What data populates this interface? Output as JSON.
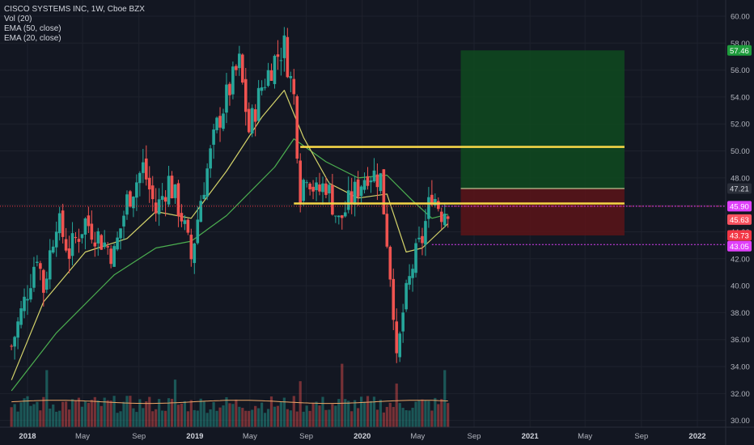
{
  "legend": {
    "symbol": "CISCO SYSTEMS INC, 1W, Cboe BZX",
    "vol": "Vol (20)",
    "ema50": "EMA (50, close)",
    "ema20": "EMA (20, close)"
  },
  "colors": {
    "background": "#131722",
    "up": "#26a69a",
    "down": "#ef5350",
    "ema20": "#d4d36a",
    "ema50": "#4caf50",
    "vol_ma": "#f0a868",
    "resistance": "#f5d547",
    "target_zone": "#0f4a1e",
    "stop_zone": "#5c1418",
    "dotted_magenta": "#e040fb",
    "dotted_red": "#f23645"
  },
  "chart_data": {
    "type": "candlestick",
    "ylim": [
      29.5,
      61.2
    ],
    "yticks": [
      30,
      32,
      34,
      36,
      38,
      40,
      42,
      44,
      46,
      48,
      50,
      52,
      54,
      56,
      58,
      60
    ],
    "xticks": [
      {
        "label": "2018",
        "date": "2018-01-01",
        "bold": true
      },
      {
        "label": "May",
        "date": "2018-05-01"
      },
      {
        "label": "Sep",
        "date": "2018-09-01"
      },
      {
        "label": "2019",
        "date": "2019-01-01",
        "bold": true
      },
      {
        "label": "May",
        "date": "2019-05-01"
      },
      {
        "label": "Sep",
        "date": "2019-09-01"
      },
      {
        "label": "2020",
        "date": "2020-01-01",
        "bold": true
      },
      {
        "label": "May",
        "date": "2020-05-01"
      },
      {
        "label": "Sep",
        "date": "2020-09-01"
      },
      {
        "label": "2021",
        "date": "2021-01-01",
        "bold": true
      },
      {
        "label": "May",
        "date": "2021-05-01"
      },
      {
        "label": "Sep",
        "date": "2021-09-01"
      },
      {
        "label": "2022",
        "date": "2022-01-01",
        "bold": true
      }
    ],
    "weekly_close_path": [
      [
        "2017-11-27",
        35.5
      ],
      [
        "2017-12-25",
        38.8
      ],
      [
        "2018-01-22",
        42.5
      ],
      [
        "2018-02-05",
        39.8
      ],
      [
        "2018-03-05",
        45.0
      ],
      [
        "2018-04-02",
        42.5
      ],
      [
        "2018-05-07",
        44.8
      ],
      [
        "2018-06-11",
        43.4
      ],
      [
        "2018-07-09",
        42.3
      ],
      [
        "2018-08-06",
        46.3
      ],
      [
        "2018-09-10",
        48.8
      ],
      [
        "2018-10-08",
        45.5
      ],
      [
        "2018-11-05",
        47.8
      ],
      [
        "2018-12-03",
        45.2
      ],
      [
        "2018-12-24",
        42.0
      ],
      [
        "2019-01-14",
        46.5
      ],
      [
        "2019-02-18",
        51.8
      ],
      [
        "2019-03-11",
        54.0
      ],
      [
        "2019-04-08",
        56.5
      ],
      [
        "2019-04-29",
        51.5
      ],
      [
        "2019-05-27",
        54.8
      ],
      [
        "2019-06-24",
        56.8
      ],
      [
        "2019-07-15",
        57.8
      ],
      [
        "2019-08-05",
        54.0
      ],
      [
        "2019-08-19",
        47.0
      ],
      [
        "2019-09-02",
        48.6
      ],
      [
        "2019-09-23",
        46.8
      ],
      [
        "2019-10-14",
        47.6
      ],
      [
        "2019-11-11",
        44.7
      ],
      [
        "2019-12-09",
        46.5
      ],
      [
        "2020-01-13",
        48.5
      ],
      [
        "2020-02-10",
        48.0
      ],
      [
        "2020-02-24",
        43.5
      ],
      [
        "2020-03-09",
        38.5
      ],
      [
        "2020-03-16",
        34.0
      ],
      [
        "2020-03-30",
        38.0
      ],
      [
        "2020-04-20",
        41.5
      ],
      [
        "2020-05-11",
        43.5
      ],
      [
        "2020-06-01",
        47.0
      ],
      [
        "2020-06-22",
        45.5
      ],
      [
        "2020-07-06",
        45.9
      ]
    ],
    "ema20_path": [
      [
        "2017-11-27",
        33.0
      ],
      [
        "2018-02-05",
        38.8
      ],
      [
        "2018-05-07",
        42.5
      ],
      [
        "2018-08-06",
        43.5
      ],
      [
        "2018-10-08",
        45.5
      ],
      [
        "2018-12-24",
        45.0
      ],
      [
        "2019-03-11",
        48.5
      ],
      [
        "2019-05-27",
        52.5
      ],
      [
        "2019-07-15",
        54.5
      ],
      [
        "2019-08-26",
        51.0
      ],
      [
        "2019-10-21",
        47.6
      ],
      [
        "2019-12-23",
        46.5
      ],
      [
        "2020-02-24",
        46.8
      ],
      [
        "2020-04-06",
        42.5
      ],
      [
        "2020-05-11",
        42.8
      ],
      [
        "2020-07-06",
        44.6
      ]
    ],
    "ema50_path": [
      [
        "2017-11-27",
        32.2
      ],
      [
        "2018-03-05",
        36.5
      ],
      [
        "2018-07-09",
        40.8
      ],
      [
        "2018-10-08",
        42.8
      ],
      [
        "2018-12-24",
        43.3
      ],
      [
        "2019-03-11",
        45.2
      ],
      [
        "2019-06-24",
        48.8
      ],
      [
        "2019-08-05",
        50.9
      ],
      [
        "2019-10-14",
        49.2
      ],
      [
        "2019-12-23",
        48.0
      ],
      [
        "2020-02-24",
        48.2
      ],
      [
        "2020-04-20",
        46.3
      ],
      [
        "2020-06-01",
        45.0
      ],
      [
        "2020-07-06",
        45.3
      ]
    ],
    "volume": {
      "ma_level_fraction": 0.32,
      "spikes": [
        [
          "2018-02-12",
          0.72
        ],
        [
          "2018-11-19",
          0.6
        ],
        [
          "2019-08-19",
          0.58
        ],
        [
          "2019-11-18",
          0.8
        ],
        [
          "2020-03-16",
          0.55
        ],
        [
          "2020-06-29",
          0.72
        ]
      ]
    },
    "drawings": {
      "resistance_upper": {
        "price": 50.3,
        "from": "2019-08-19",
        "to": "2021-07-26"
      },
      "resistance_lower": {
        "price": 46.1,
        "from": "2019-08-05",
        "to": "2021-07-26"
      },
      "target_zone": {
        "top": 57.46,
        "bottom": 47.21,
        "from": "2020-08-03",
        "to": "2021-07-26"
      },
      "stop_zone": {
        "top": 47.21,
        "bottom": 43.73,
        "from": "2020-08-03",
        "to": "2021-07-26"
      },
      "dotted_magenta_upper": 45.9,
      "dotted_magenta_lower": 43.05
    },
    "price_labels": [
      {
        "text": "57.46",
        "price": 57.46,
        "bg": "#1e9c3c",
        "fg": "#ffffff"
      },
      {
        "text": "47.21",
        "price": 47.21,
        "bg": "#2a2e39",
        "fg": "#d1d4dc"
      },
      {
        "text": "45.90",
        "price": 45.9,
        "bg": "#e040fb",
        "fg": "#ffffff"
      },
      {
        "text": "45.63",
        "price": 45.63,
        "bg": "#f7525f",
        "fg": "#ffffff",
        "offset": 12
      },
      {
        "text": "43.73",
        "price": 43.73,
        "bg": "#f23645",
        "fg": "#ffffff"
      },
      {
        "text": "43.05",
        "price": 43.05,
        "bg": "#e040fb",
        "fg": "#ffffff",
        "offset": 2
      }
    ]
  }
}
